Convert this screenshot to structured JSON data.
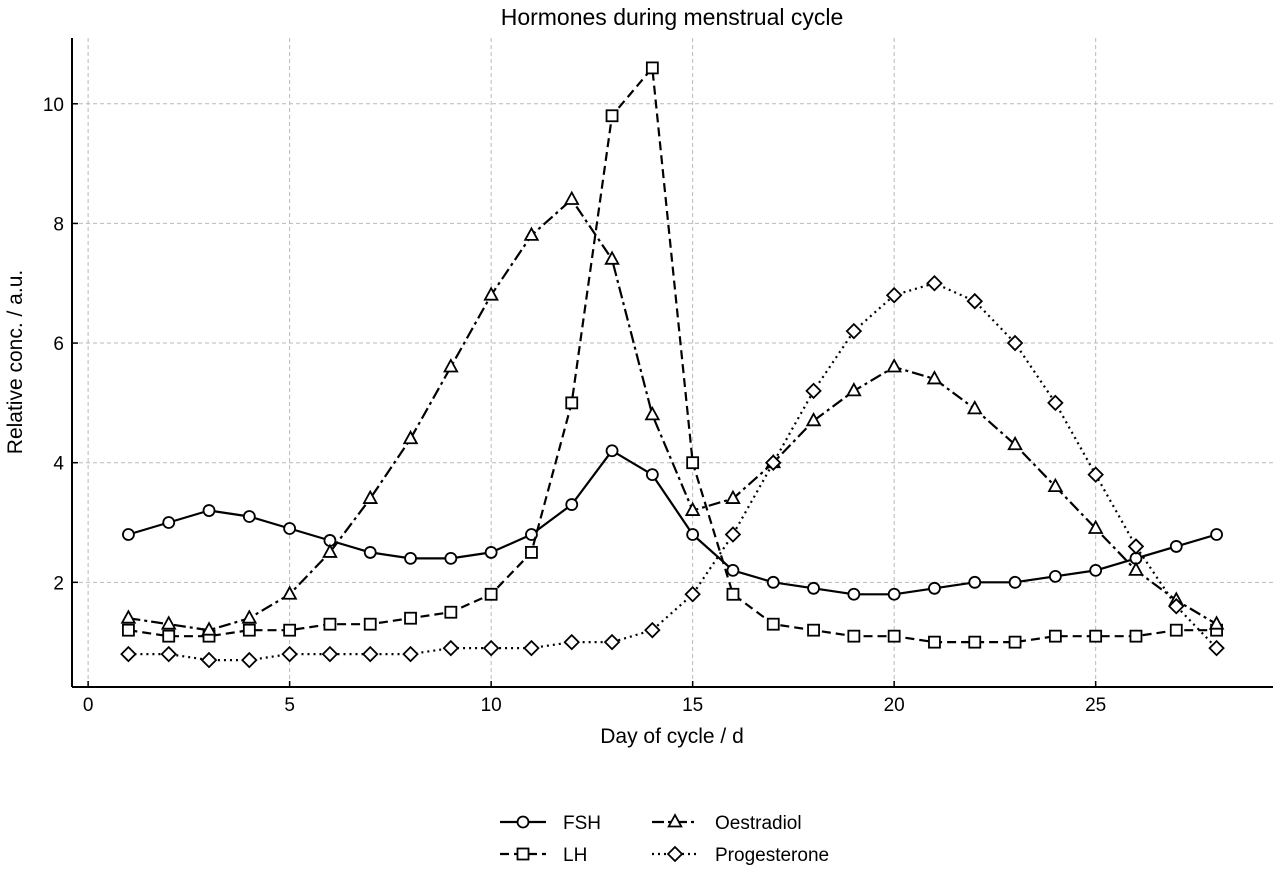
{
  "chart_data": {
    "type": "line",
    "title": "Hormones during menstrual cycle",
    "xlabel": "Day of cycle / d",
    "ylabel": "Relative conc. / a.u.",
    "xlim": [
      -0.4,
      29.4
    ],
    "ylim": [
      0.25,
      11.1
    ],
    "xticks": [
      0,
      5,
      10,
      15,
      20,
      25
    ],
    "yticks": [
      2,
      4,
      6,
      8,
      10
    ],
    "grid": true,
    "legend_position": "bottom-center",
    "x": [
      1,
      2,
      3,
      4,
      5,
      6,
      7,
      8,
      9,
      10,
      11,
      12,
      13,
      14,
      15,
      16,
      17,
      18,
      19,
      20,
      21,
      22,
      23,
      24,
      25,
      26,
      27,
      28
    ],
    "series": [
      {
        "name": "FSH",
        "marker": "circle",
        "dash": "solid",
        "color": "#000000",
        "values": [
          2.8,
          3.0,
          3.2,
          3.1,
          2.9,
          2.7,
          2.5,
          2.4,
          2.4,
          2.5,
          2.8,
          3.3,
          4.2,
          3.8,
          2.8,
          2.2,
          2.0,
          1.9,
          1.8,
          1.8,
          1.9,
          2.0,
          2.0,
          2.1,
          2.2,
          2.4,
          2.6,
          2.8
        ]
      },
      {
        "name": "LH",
        "marker": "square",
        "dash": "dashed",
        "color": "#000000",
        "values": [
          1.2,
          1.1,
          1.1,
          1.2,
          1.2,
          1.3,
          1.3,
          1.4,
          1.5,
          1.8,
          2.5,
          5.0,
          9.8,
          10.6,
          4.0,
          1.8,
          1.3,
          1.2,
          1.1,
          1.1,
          1.0,
          1.0,
          1.0,
          1.1,
          1.1,
          1.1,
          1.2,
          1.2
        ]
      },
      {
        "name": "Oestradiol",
        "marker": "triangle",
        "dash": "dashdot",
        "color": "#000000",
        "values": [
          1.4,
          1.3,
          1.2,
          1.4,
          1.8,
          2.5,
          3.4,
          4.4,
          5.6,
          6.8,
          7.8,
          8.4,
          7.4,
          4.8,
          3.2,
          3.4,
          4.0,
          4.7,
          5.2,
          5.6,
          5.4,
          4.9,
          4.3,
          3.6,
          2.9,
          2.2,
          1.7,
          1.3
        ]
      },
      {
        "name": "Progesterone",
        "marker": "diamond",
        "dash": "dotted",
        "color": "#000000",
        "values": [
          0.8,
          0.8,
          0.7,
          0.7,
          0.8,
          0.8,
          0.8,
          0.8,
          0.9,
          0.9,
          0.9,
          1.0,
          1.0,
          1.2,
          1.8,
          2.8,
          4.0,
          5.2,
          6.2,
          6.8,
          7.0,
          6.7,
          6.0,
          5.0,
          3.8,
          2.6,
          1.6,
          0.9
        ]
      }
    ]
  }
}
